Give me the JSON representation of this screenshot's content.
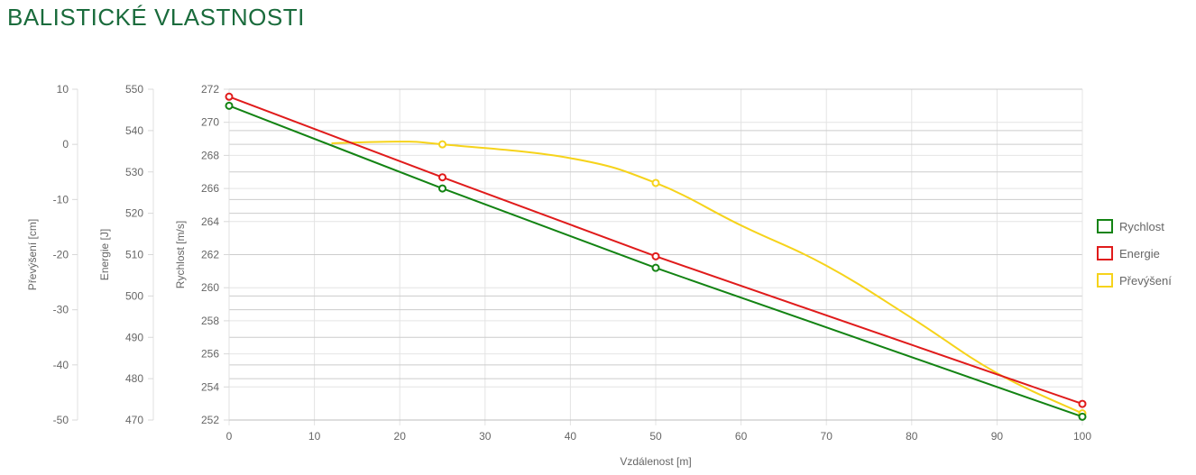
{
  "title": "BALISTICKÉ VLASTNOSTI",
  "chart_data": {
    "type": "line",
    "x": [
      0,
      25,
      50,
      100
    ],
    "xlabel": "Vzdálenost [m]",
    "xlim": [
      0,
      100
    ],
    "xticks": [
      0,
      10,
      20,
      30,
      40,
      50,
      60,
      70,
      80,
      90,
      100
    ],
    "grid": true,
    "legend_position": "right",
    "axes": [
      {
        "id": "speed",
        "label": "Rychlost [m/s]",
        "range": [
          252,
          272
        ],
        "ticks": [
          252,
          254,
          256,
          258,
          260,
          262,
          264,
          266,
          268,
          270,
          272
        ]
      },
      {
        "id": "energy",
        "label": "Energie [J]",
        "range": [
          470,
          550
        ],
        "ticks": [
          470,
          480,
          490,
          500,
          510,
          520,
          530,
          540,
          550
        ]
      },
      {
        "id": "drop",
        "label": "Převýšení [cm]",
        "range": [
          -50,
          10
        ],
        "ticks": [
          -50,
          -40,
          -30,
          -20,
          -10,
          0,
          10
        ]
      }
    ],
    "series": [
      {
        "name": "Rychlost",
        "axis": "speed",
        "color": "#138313",
        "smooth": false,
        "x": [
          0,
          25,
          50,
          100
        ],
        "values": [
          271,
          266,
          261.2,
          252.2
        ]
      },
      {
        "name": "Energie",
        "axis": "energy",
        "color": "#e01b1b",
        "smooth": false,
        "x": [
          0,
          25,
          50,
          100
        ],
        "values": [
          548.2,
          528.7,
          509.6,
          473.9
        ]
      },
      {
        "name": "Převýšení",
        "axis": "drop",
        "color": "#f6d31b",
        "smooth": true,
        "x": [
          12,
          20,
          25,
          40,
          50,
          60,
          70,
          80,
          90,
          100
        ],
        "values": [
          0.2,
          0.5,
          0,
          -2.5,
          -7,
          -14.7,
          -22,
          -31.5,
          -41.5,
          -48.8
        ],
        "markers_at": [
          25,
          50,
          100
        ]
      }
    ]
  }
}
